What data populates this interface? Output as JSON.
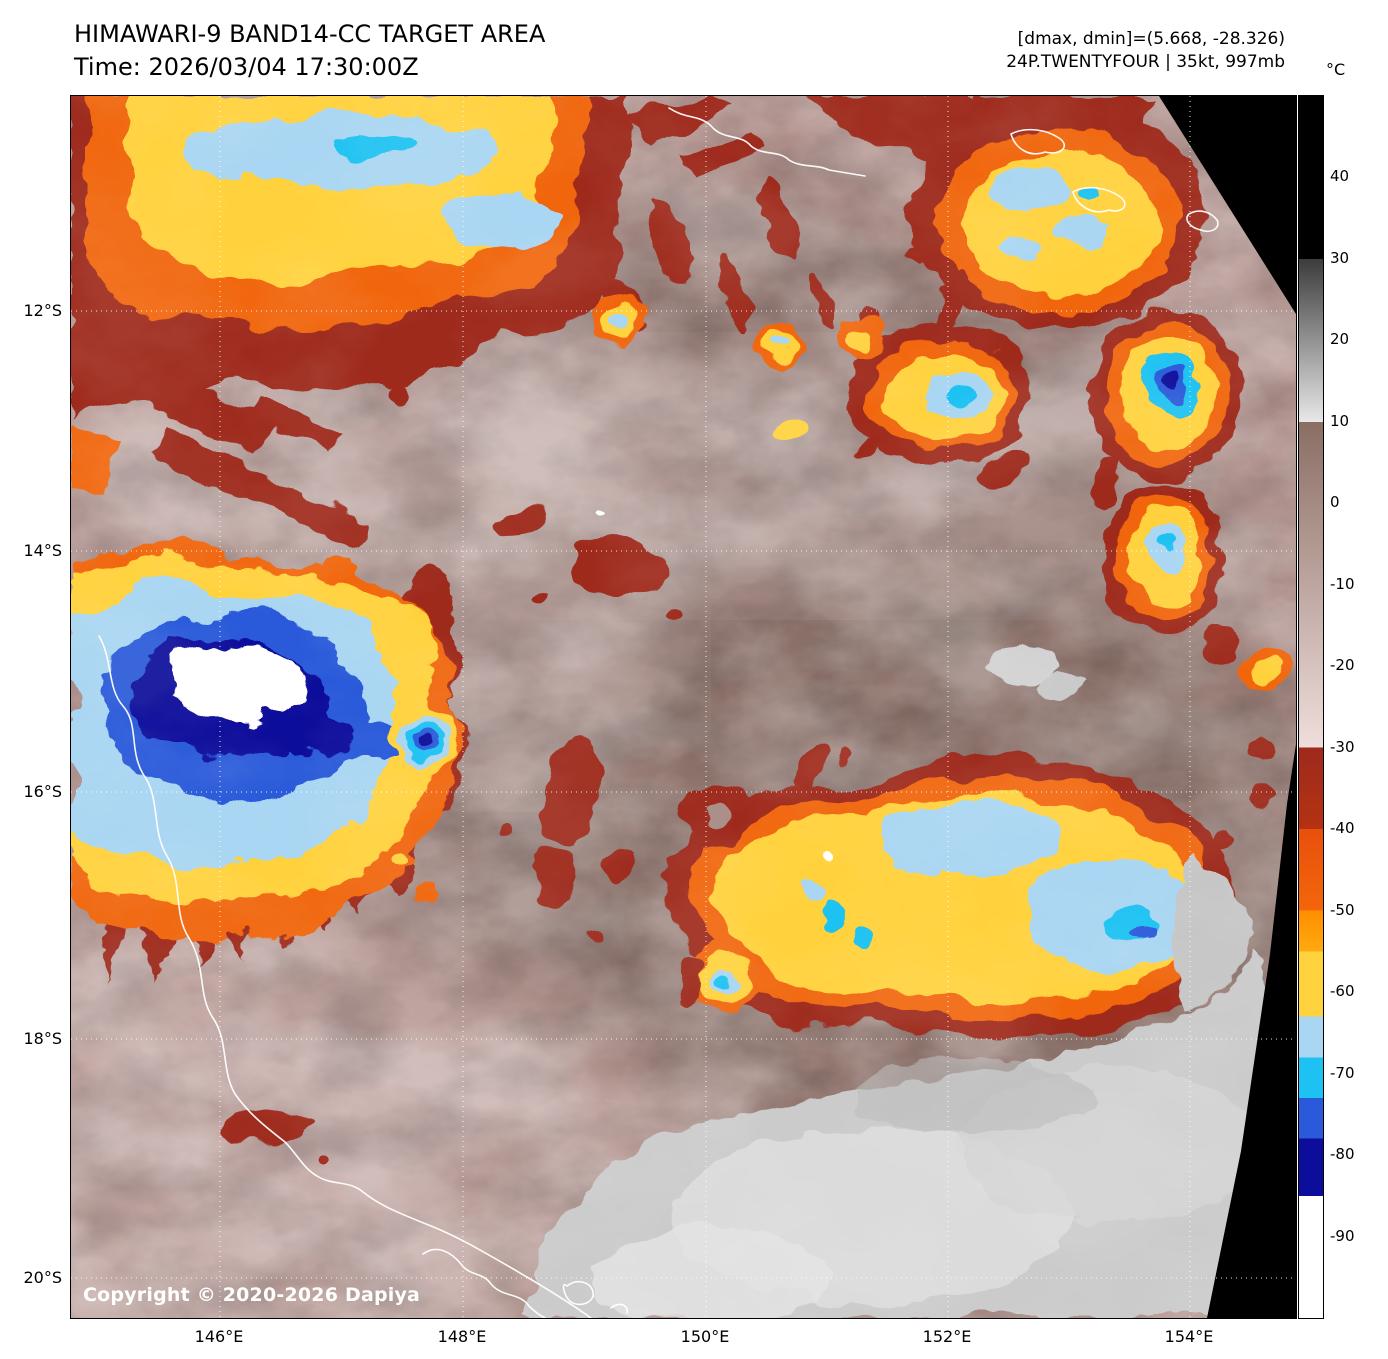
{
  "header": {
    "title": "HIMAWARI-9 BAND14-CC TARGET AREA",
    "time": "Time: 2026/03/04 17:30:00Z",
    "dmax_dmin": "[dmax, dmin]=(5.668, -28.326)",
    "storm": "24P.TWENTYFOUR | 35kt, 997mb"
  },
  "map": {
    "copyright": "Copyright © 2020-2026 Dapiya",
    "x_tick_labels": [
      "146°E",
      "148°E",
      "150°E",
      "152°E",
      "154°E"
    ],
    "y_tick_labels": [
      "12°S",
      "14°S",
      "16°S",
      "18°S",
      "20°S"
    ]
  },
  "colorbar": {
    "unit": "°C",
    "tick_labels": [
      "40",
      "30",
      "20",
      "10",
      "0",
      "-10",
      "-20",
      "-30",
      "-40",
      "-50",
      "-60",
      "-70",
      "-80",
      "-90"
    ],
    "domain_top_c": 50,
    "domain_bottom_c": -100,
    "stops": [
      {
        "t": 50,
        "color": "#000000"
      },
      {
        "t": 30,
        "color": "#000000"
      },
      {
        "t": 30,
        "color": "#3c3c3c"
      },
      {
        "t": 10,
        "color": "#e8e8e8"
      },
      {
        "t": 10,
        "color": "#8a6e64"
      },
      {
        "t": -30,
        "color": "#f0dedc"
      },
      {
        "t": -30,
        "color": "#9e2a1c"
      },
      {
        "t": -40,
        "color": "#b53212"
      },
      {
        "t": -40,
        "color": "#e8500c"
      },
      {
        "t": -50,
        "color": "#f4660a"
      },
      {
        "t": -50,
        "color": "#ff8e00"
      },
      {
        "t": -55,
        "color": "#ffaa10"
      },
      {
        "t": -55,
        "color": "#ffd23e"
      },
      {
        "t": -63,
        "color": "#ffd23e"
      },
      {
        "t": -63,
        "color": "#a9d6f2"
      },
      {
        "t": -68,
        "color": "#a9d6f2"
      },
      {
        "t": -68,
        "color": "#1ec2f2"
      },
      {
        "t": -73,
        "color": "#1ec2f2"
      },
      {
        "t": -73,
        "color": "#2a5ada"
      },
      {
        "t": -78,
        "color": "#2a5ada"
      },
      {
        "t": -78,
        "color": "#0d0d9b"
      },
      {
        "t": -85,
        "color": "#0d0d9b"
      },
      {
        "t": -85,
        "color": "#ffffff"
      },
      {
        "t": -100,
        "color": "#ffffff"
      }
    ]
  }
}
